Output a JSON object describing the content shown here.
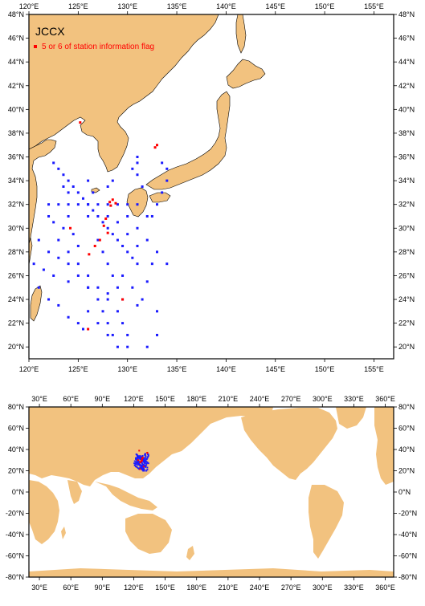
{
  "regional_map": {
    "title": "JCCX",
    "legend_label": "5 or 6 of station information flag",
    "x_ticks": [
      "120°E",
      "125°E",
      "130°E",
      "135°E",
      "140°E",
      "145°E",
      "150°E",
      "155°E"
    ],
    "y_ticks": [
      "20°N",
      "22°N",
      "24°N",
      "26°N",
      "28°N",
      "30°N",
      "32°N",
      "34°N",
      "36°N",
      "38°N",
      "40°N",
      "42°N",
      "44°N",
      "46°N",
      "48°N"
    ],
    "colors": {
      "land": "#f2c27f",
      "stations": "#1a1aff",
      "flagged": "#ff0000",
      "ocean": "#ffffff"
    }
  },
  "global_map": {
    "x_ticks": [
      "30°E",
      "60°E",
      "90°E",
      "120°E",
      "150°E",
      "180°E",
      "210°E",
      "240°E",
      "270°E",
      "300°E",
      "330°E",
      "360°E"
    ],
    "y_ticks": [
      "80°N",
      "60°N",
      "40°N",
      "20°N",
      "0°N",
      "-20°N",
      "-40°N",
      "-60°N",
      "-80°N"
    ]
  },
  "chart_data": {
    "type": "scatter",
    "series": [
      {
        "legend": "",
        "points": [
          [
            122.5,
            35.5
          ],
          [
            123,
            35
          ],
          [
            123.5,
            34.5
          ],
          [
            124,
            34
          ],
          [
            124.5,
            33.5
          ],
          [
            125,
            33
          ],
          [
            125.5,
            32.5
          ],
          [
            126,
            32
          ],
          [
            126.5,
            31.5
          ],
          [
            127,
            31
          ],
          [
            127.5,
            30.5
          ],
          [
            128,
            30
          ],
          [
            128.5,
            29.5
          ],
          [
            129,
            29
          ],
          [
            129.5,
            28.5
          ],
          [
            130,
            28
          ],
          [
            130.5,
            27.5
          ],
          [
            131,
            27
          ],
          [
            122,
            32
          ],
          [
            123,
            32
          ],
          [
            124,
            32
          ],
          [
            125,
            32
          ],
          [
            126,
            32
          ],
          [
            127,
            32
          ],
          [
            128,
            32
          ],
          [
            129,
            32
          ],
          [
            130,
            32
          ],
          [
            131,
            32
          ],
          [
            122,
            31
          ],
          [
            124,
            31
          ],
          [
            126,
            31
          ],
          [
            128,
            31
          ],
          [
            130,
            31
          ],
          [
            132,
            31
          ],
          [
            123,
            29
          ],
          [
            124,
            28
          ],
          [
            125,
            27
          ],
          [
            126,
            26
          ],
          [
            127,
            25
          ],
          [
            128,
            24
          ],
          [
            129,
            23
          ],
          [
            129.5,
            22
          ],
          [
            130,
            21
          ],
          [
            130,
            20
          ],
          [
            129,
            20
          ],
          [
            128.5,
            21
          ],
          [
            128,
            22
          ],
          [
            127.5,
            23
          ],
          [
            127,
            24
          ],
          [
            126,
            25
          ],
          [
            125,
            26
          ],
          [
            124,
            27
          ],
          [
            123,
            27.5
          ],
          [
            122,
            28
          ],
          [
            121.5,
            26.5
          ],
          [
            122.5,
            26
          ],
          [
            124,
            25.5
          ],
          [
            126,
            25
          ],
          [
            128,
            24.5
          ],
          [
            129.5,
            24
          ],
          [
            131,
            23.5
          ],
          [
            133,
            23
          ],
          [
            133,
            21
          ],
          [
            132,
            20
          ],
          [
            131,
            30
          ],
          [
            132,
            29
          ],
          [
            133,
            28
          ],
          [
            134,
            27
          ],
          [
            132.5,
            31
          ],
          [
            133,
            32
          ],
          [
            133.5,
            33
          ],
          [
            134,
            34
          ],
          [
            134,
            35
          ],
          [
            133.5,
            35.5
          ],
          [
            131,
            34.5
          ],
          [
            131.5,
            33.5
          ],
          [
            128.5,
            34
          ],
          [
            128,
            33.5
          ],
          [
            126.5,
            33
          ],
          [
            126,
            34
          ],
          [
            124,
            33
          ],
          [
            123.5,
            33.5
          ],
          [
            127,
            29
          ],
          [
            127.5,
            28
          ],
          [
            128,
            27
          ],
          [
            128.5,
            26
          ],
          [
            129,
            25
          ],
          [
            125,
            28.5
          ],
          [
            124.5,
            29.5
          ],
          [
            123.5,
            30
          ],
          [
            122.5,
            30.5
          ],
          [
            121,
            29
          ],
          [
            120.5,
            27
          ],
          [
            121,
            25
          ],
          [
            122,
            24
          ],
          [
            123,
            23.5
          ],
          [
            124,
            22.5
          ],
          [
            125,
            22
          ],
          [
            125.5,
            21.5
          ],
          [
            126,
            23
          ],
          [
            127,
            22
          ],
          [
            128,
            21
          ],
          [
            129.5,
            26
          ],
          [
            130.5,
            25
          ],
          [
            131.5,
            24
          ],
          [
            132,
            25.5
          ],
          [
            132.5,
            27
          ],
          [
            131,
            28.5
          ],
          [
            130,
            29.5
          ],
          [
            129,
            30.5
          ],
          [
            131,
            36
          ],
          [
            131,
            35.5
          ],
          [
            130.5,
            35
          ]
        ]
      },
      {
        "legend": "5 or 6 of station information flag",
        "points": [
          [
            128.2,
            32.2
          ],
          [
            128.5,
            32.4
          ],
          [
            128.8,
            32.1
          ],
          [
            128.3,
            31.9
          ],
          [
            127.8,
            30.8
          ],
          [
            127.6,
            30.2
          ],
          [
            128,
            29.6
          ],
          [
            127.2,
            29
          ],
          [
            126.7,
            28.5
          ],
          [
            126.1,
            27.8
          ],
          [
            124.2,
            30
          ],
          [
            126,
            21.5
          ],
          [
            129.5,
            24
          ],
          [
            133,
            37
          ],
          [
            132.8,
            36.8
          ],
          [
            125.2,
            38.9
          ]
        ]
      }
    ],
    "regional_xlim": [
      120,
      157
    ],
    "regional_ylim": [
      19,
      48
    ],
    "global_xlim": [
      20,
      368
    ],
    "global_ylim": [
      -80,
      80
    ],
    "grid": false
  }
}
